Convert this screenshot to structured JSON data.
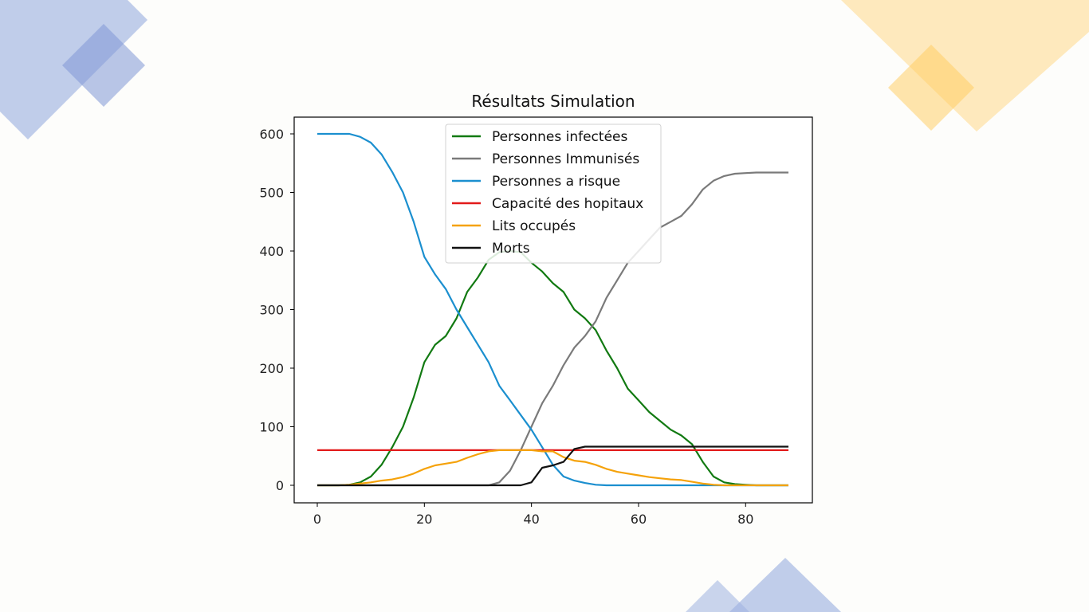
{
  "decor": {
    "blue": "#9fb3e0",
    "blue_dark": "#7f98d6",
    "yellow": "#ffd98a",
    "yellow_dark": "#ffcc5c"
  },
  "chart_data": {
    "type": "line",
    "title": "Résultats Simulation",
    "xlim": [
      0,
      88
    ],
    "ylim": [
      0,
      600
    ],
    "xticks": [
      0,
      20,
      40,
      60,
      80
    ],
    "yticks": [
      0,
      100,
      200,
      300,
      400,
      500,
      600
    ],
    "xtick_labels": [
      "0",
      "20",
      "40",
      "60",
      "80"
    ],
    "ytick_labels": [
      "0",
      "100",
      "200",
      "300",
      "400",
      "500",
      "600"
    ],
    "legend_position": "top-center",
    "grid": false,
    "x": [
      0,
      2,
      4,
      6,
      8,
      10,
      12,
      14,
      16,
      18,
      20,
      22,
      24,
      26,
      28,
      30,
      32,
      34,
      36,
      38,
      40,
      42,
      44,
      46,
      48,
      50,
      52,
      54,
      56,
      58,
      60,
      62,
      64,
      66,
      68,
      70,
      72,
      74,
      76,
      78,
      80,
      82,
      84,
      86,
      88
    ],
    "series": [
      {
        "name": "Personnes infectées",
        "color": "#127a12",
        "values": [
          0,
          0,
          0,
          1,
          5,
          15,
          35,
          65,
          100,
          150,
          210,
          240,
          255,
          285,
          330,
          355,
          385,
          398,
          400,
          398,
          380,
          365,
          345,
          330,
          300,
          285,
          265,
          230,
          200,
          165,
          145,
          125,
          110,
          95,
          85,
          70,
          40,
          15,
          5,
          2,
          1,
          0,
          0,
          0,
          0
        ]
      },
      {
        "name": "Personnes Immunisés",
        "color": "#7a7a7a",
        "values": [
          0,
          0,
          0,
          0,
          0,
          0,
          0,
          0,
          0,
          0,
          0,
          0,
          0,
          0,
          0,
          0,
          0,
          5,
          25,
          60,
          100,
          140,
          170,
          205,
          235,
          255,
          280,
          320,
          350,
          380,
          400,
          420,
          440,
          450,
          460,
          480,
          505,
          520,
          528,
          532,
          533,
          534,
          534,
          534,
          534
        ]
      },
      {
        "name": "Personnes a risque",
        "color": "#1b8fcf",
        "values": [
          600,
          600,
          600,
          600,
          595,
          585,
          565,
          535,
          500,
          450,
          390,
          360,
          335,
          300,
          270,
          240,
          210,
          170,
          145,
          120,
          95,
          65,
          35,
          15,
          8,
          4,
          1,
          0,
          0,
          0,
          0,
          0,
          0,
          0,
          0,
          0,
          0,
          0,
          0,
          0,
          0,
          0,
          0,
          0,
          0
        ]
      },
      {
        "name": "Capacité des hopitaux",
        "color": "#e21b1b",
        "values": [
          60,
          60,
          60,
          60,
          60,
          60,
          60,
          60,
          60,
          60,
          60,
          60,
          60,
          60,
          60,
          60,
          60,
          60,
          60,
          60,
          60,
          60,
          60,
          60,
          60,
          60,
          60,
          60,
          60,
          60,
          60,
          60,
          60,
          60,
          60,
          60,
          60,
          60,
          60,
          60,
          60,
          60,
          60,
          60,
          60
        ]
      },
      {
        "name": "Lits occupés",
        "color": "#f5a20a",
        "values": [
          0,
          0,
          0,
          1,
          3,
          5,
          8,
          10,
          14,
          20,
          28,
          34,
          37,
          40,
          47,
          53,
          58,
          60,
          60,
          60,
          60,
          58,
          58,
          48,
          42,
          40,
          35,
          28,
          23,
          20,
          17,
          14,
          12,
          10,
          9,
          6,
          3,
          1,
          0,
          0,
          0,
          0,
          0,
          0,
          0
        ]
      },
      {
        "name": "Morts",
        "color": "#111111",
        "values": [
          0,
          0,
          0,
          0,
          0,
          0,
          0,
          0,
          0,
          0,
          0,
          0,
          0,
          0,
          0,
          0,
          0,
          0,
          0,
          0,
          5,
          30,
          34,
          40,
          62,
          66,
          66,
          66,
          66,
          66,
          66,
          66,
          66,
          66,
          66,
          66,
          66,
          66,
          66,
          66,
          66,
          66,
          66,
          66,
          66
        ]
      }
    ]
  }
}
